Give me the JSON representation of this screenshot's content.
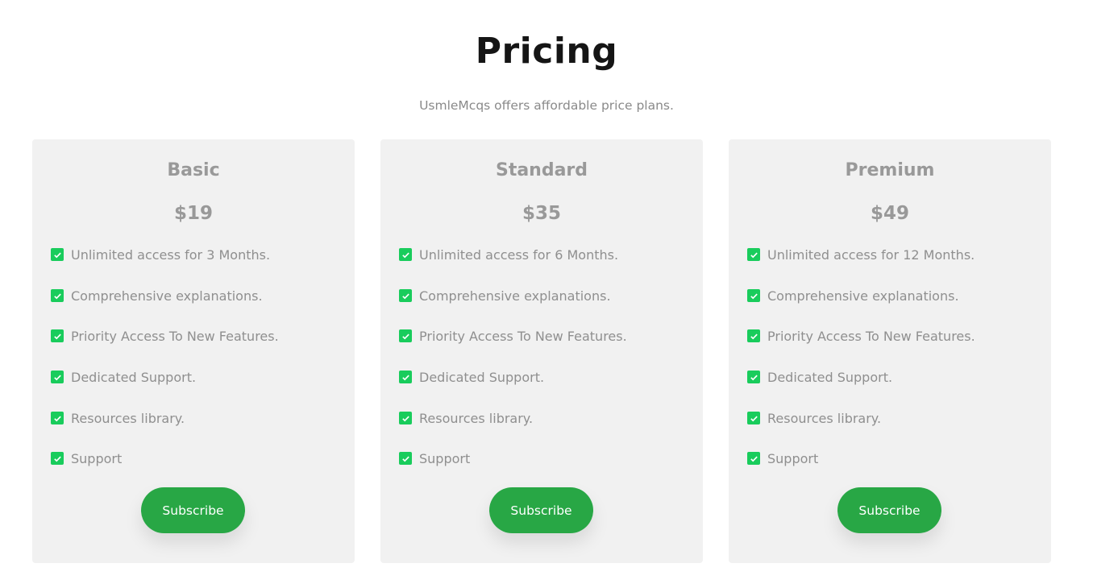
{
  "header": {
    "title": "Pricing",
    "subtitle": "UsmleMcqs offers affordable price plans."
  },
  "colors": {
    "accent": "#28a745",
    "check": "#19cc5c",
    "card_bg": "#f1f1f1"
  },
  "plans": [
    {
      "name": "Basic",
      "price": "$19",
      "button": "Subscribe",
      "features": [
        "Unlimited access for 3 Months.",
        "Comprehensive explanations.",
        "Priority Access To New Features.",
        "Dedicated Support.",
        "Resources library.",
        "Support"
      ]
    },
    {
      "name": "Standard",
      "price": "$35",
      "button": "Subscribe",
      "features": [
        "Unlimited access for 6 Months.",
        "Comprehensive explanations.",
        "Priority Access To New Features.",
        "Dedicated Support.",
        "Resources library.",
        "Support"
      ]
    },
    {
      "name": "Premium",
      "price": "$49",
      "button": "Subscribe",
      "features": [
        "Unlimited access for 12 Months.",
        "Comprehensive explanations.",
        "Priority Access To New Features.",
        "Dedicated Support.",
        "Resources library.",
        "Support"
      ]
    }
  ]
}
